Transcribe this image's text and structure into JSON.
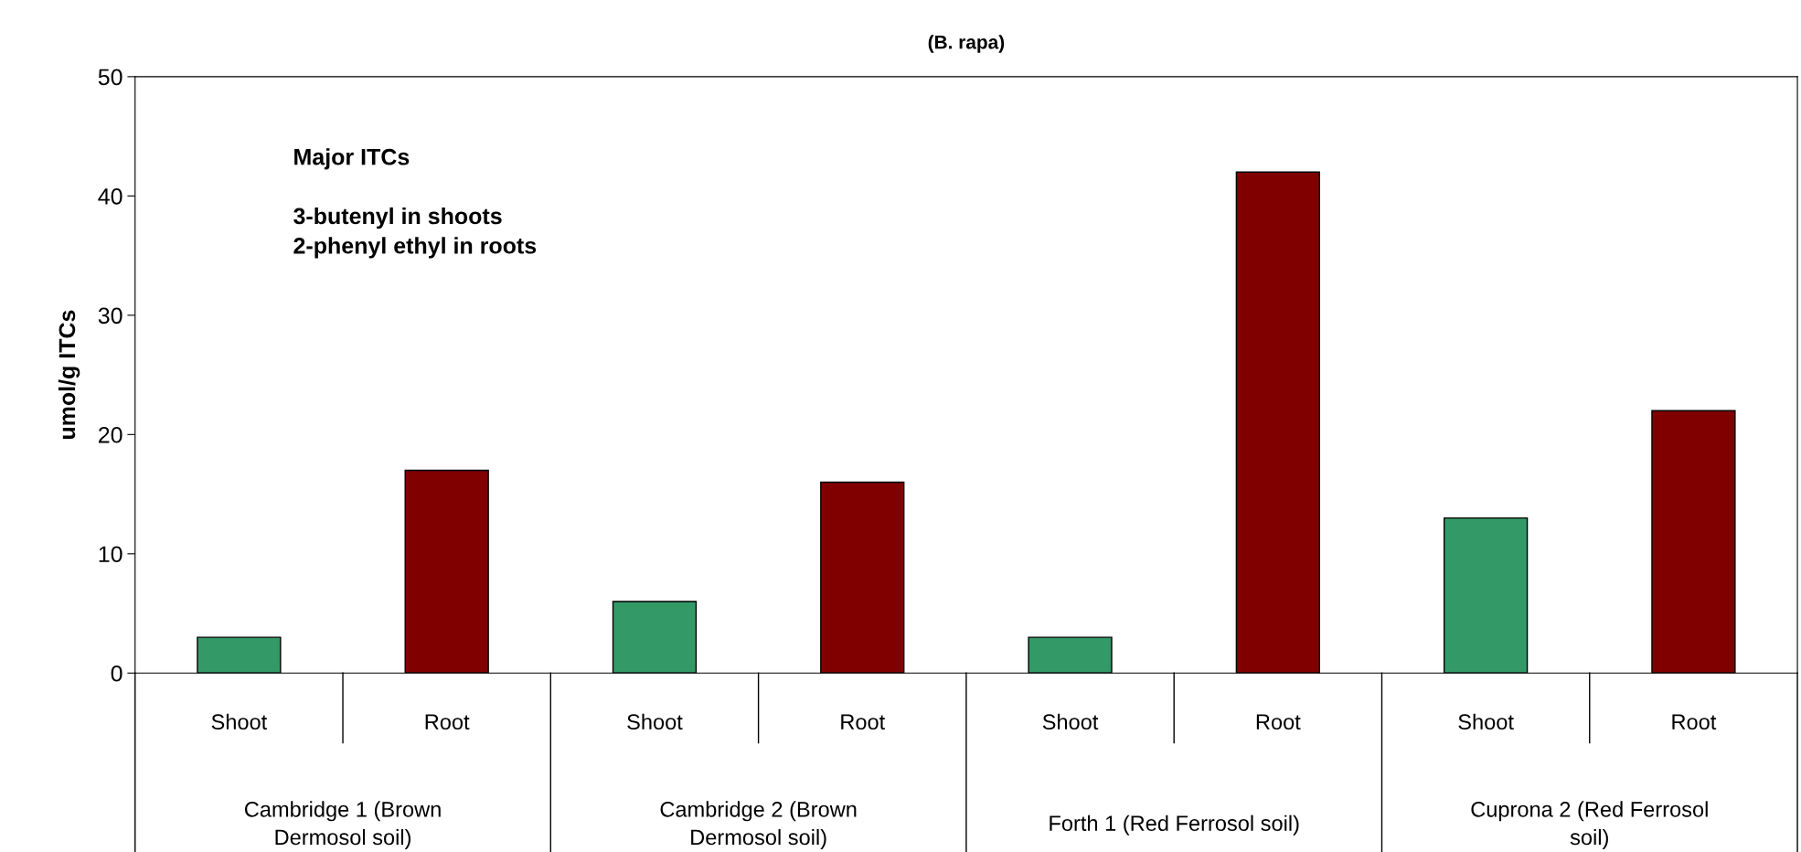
{
  "chart_data": {
    "type": "bar",
    "title": "(B. rapa)",
    "ylabel": "umol/g ITCs",
    "categories": [
      "Shoot",
      "Root",
      "Shoot",
      "Root",
      "Shoot",
      "Root",
      "Shoot",
      "Root"
    ],
    "values": [
      3,
      17,
      6,
      16,
      3,
      42,
      13,
      22
    ],
    "colors": [
      "#339966",
      "#800000",
      "#339966",
      "#800000",
      "#339966",
      "#800000",
      "#339966",
      "#800000"
    ],
    "ylim": [
      0,
      50
    ],
    "yticks": [
      0,
      10,
      20,
      30,
      40,
      50
    ],
    "grid": false,
    "annotations": [
      "Major ITCs\n\n3-butenyl in shoots\n2-phenyl ethyl in roots",
      "Cambridge 1 (Brown\nDermosol soil)",
      "Cambridge 2 (Brown\nDermosol soil)",
      "Forth 1 (Red Ferrosol soil)",
      "Cuprona 2 (Red Ferrosol\nsoil)"
    ]
  }
}
